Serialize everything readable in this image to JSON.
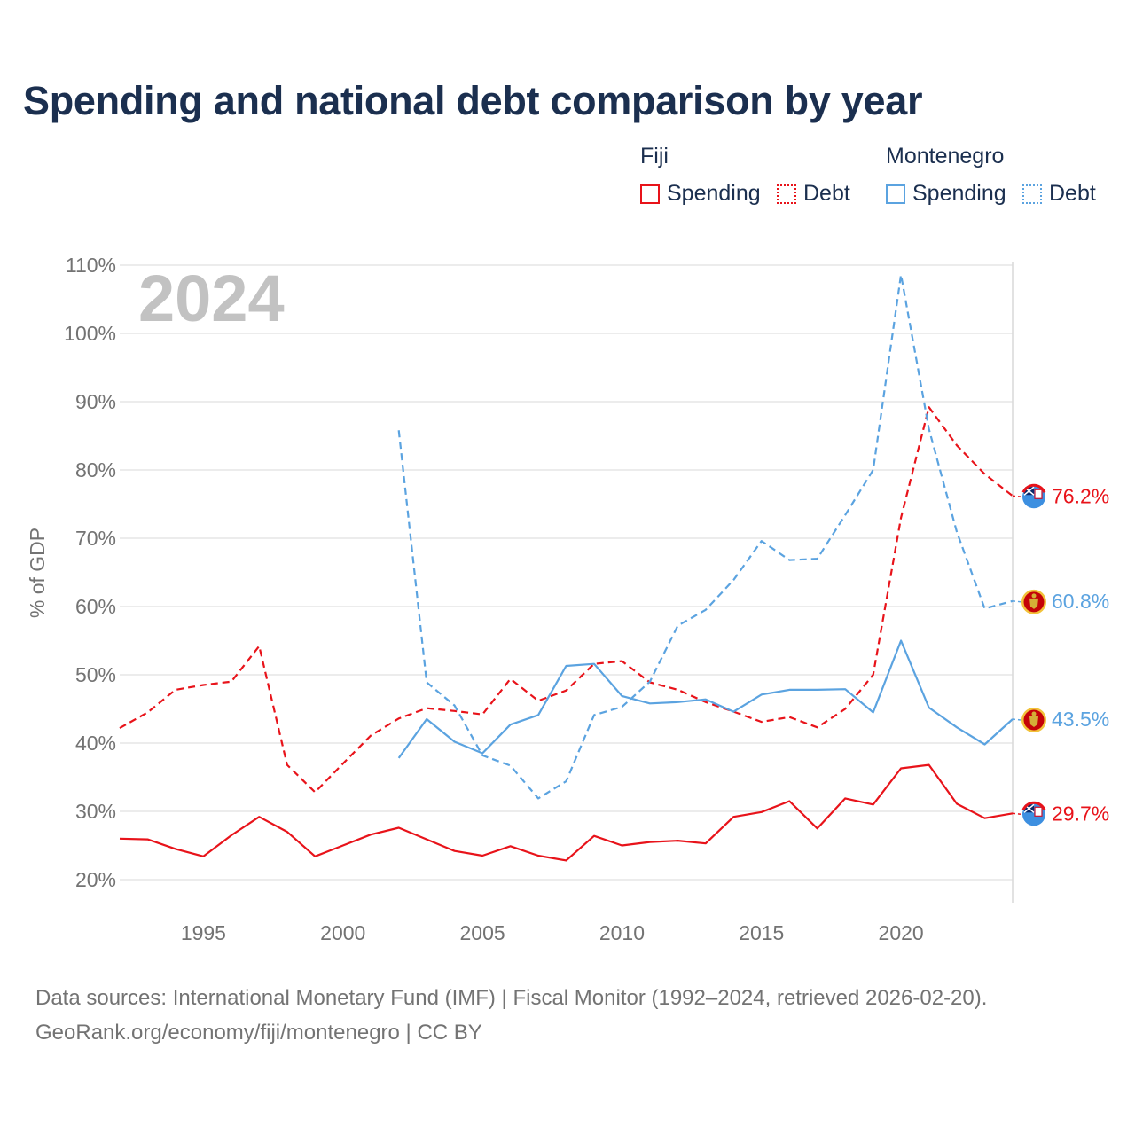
{
  "chart_data": {
    "type": "line",
    "title": "Spending and national debt comparison by year",
    "ylabel": "% of GDP",
    "xlabel": "",
    "watermark_year": "2024",
    "xlim": [
      1992,
      2024
    ],
    "ylim": [
      15,
      111
    ],
    "x_ticks": [
      1995,
      2000,
      2005,
      2010,
      2015,
      2020
    ],
    "y_ticks": [
      20,
      30,
      40,
      50,
      60,
      70,
      80,
      90,
      100,
      110
    ],
    "y_tick_labels": [
      "20%",
      "30%",
      "40%",
      "50%",
      "60%",
      "70%",
      "80%",
      "90%",
      "100%",
      "110%"
    ],
    "legend": {
      "groups": [
        {
          "name": "Fiji",
          "items": [
            "Spending",
            "Debt"
          ]
        },
        {
          "name": "Montenegro",
          "items": [
            "Spending",
            "Debt"
          ]
        }
      ]
    },
    "series": [
      {
        "id": "fiji-spending",
        "country": "Fiji",
        "name": "Spending",
        "style": "solid",
        "color": "#e8131a",
        "end_label": "29.7%",
        "x": [
          1992,
          1993,
          1994,
          1995,
          1996,
          1997,
          1998,
          1999,
          2000,
          2001,
          2002,
          2003,
          2004,
          2005,
          2006,
          2007,
          2008,
          2009,
          2010,
          2011,
          2012,
          2013,
          2014,
          2015,
          2016,
          2017,
          2018,
          2019,
          2020,
          2021,
          2022,
          2023,
          2024
        ],
        "values": [
          26.0,
          25.9,
          24.5,
          23.4,
          26.5,
          29.2,
          27.0,
          23.4,
          25.0,
          26.6,
          27.6,
          25.9,
          24.2,
          23.5,
          24.9,
          23.5,
          22.8,
          26.4,
          25.0,
          25.5,
          25.7,
          25.3,
          29.2,
          29.9,
          31.5,
          27.5,
          31.9,
          31.0,
          36.3,
          36.8,
          31.1,
          29.0,
          29.7
        ]
      },
      {
        "id": "fiji-debt",
        "country": "Fiji",
        "name": "Debt",
        "style": "dashed",
        "color": "#e8131a",
        "end_label": "76.2%",
        "x": [
          1992,
          1993,
          1994,
          1995,
          1996,
          1997,
          1998,
          1999,
          2000,
          2001,
          2002,
          2003,
          2004,
          2005,
          2006,
          2007,
          2008,
          2009,
          2010,
          2011,
          2012,
          2013,
          2014,
          2015,
          2016,
          2017,
          2018,
          2019,
          2020,
          2021,
          2022,
          2023,
          2024
        ],
        "values": [
          42.2,
          44.5,
          47.8,
          48.5,
          49.0,
          54.2,
          36.8,
          32.8,
          37.0,
          41.1,
          43.6,
          45.1,
          44.7,
          44.2,
          49.4,
          46.2,
          47.7,
          51.6,
          52.0,
          48.9,
          47.8,
          46.0,
          44.6,
          43.1,
          43.8,
          42.3,
          45.0,
          50.0,
          73.0,
          89.2,
          83.6,
          79.4,
          76.2
        ]
      },
      {
        "id": "montenegro-spending",
        "country": "Montenegro",
        "name": "Spending",
        "style": "solid",
        "color": "#5ba3e0",
        "end_label": "43.5%",
        "x": [
          2002,
          2003,
          2004,
          2005,
          2006,
          2007,
          2008,
          2009,
          2010,
          2011,
          2012,
          2013,
          2014,
          2015,
          2016,
          2017,
          2018,
          2019,
          2020,
          2021,
          2022,
          2023,
          2024
        ],
        "values": [
          37.8,
          43.5,
          40.2,
          38.5,
          42.7,
          44.1,
          51.3,
          51.6,
          46.9,
          45.8,
          46.0,
          46.4,
          44.6,
          47.1,
          47.8,
          47.8,
          47.9,
          44.5,
          55.0,
          45.2,
          42.3,
          39.8,
          43.5
        ]
      },
      {
        "id": "montenegro-debt",
        "country": "Montenegro",
        "name": "Debt",
        "style": "dashed",
        "color": "#5ba3e0",
        "end_label": "60.8%",
        "x": [
          2002,
          2003,
          2004,
          2005,
          2006,
          2007,
          2008,
          2009,
          2010,
          2011,
          2012,
          2013,
          2014,
          2015,
          2016,
          2017,
          2018,
          2019,
          2020,
          2021,
          2022,
          2023,
          2024
        ],
        "values": [
          85.8,
          48.9,
          45.5,
          38.2,
          36.7,
          31.9,
          34.4,
          44.1,
          45.3,
          49.0,
          57.2,
          59.5,
          63.9,
          69.6,
          66.8,
          67.0,
          73.4,
          80.0,
          108.6,
          86.0,
          70.9,
          59.7,
          60.8
        ]
      }
    ]
  },
  "flags": {
    "Fiji": {
      "name": "Fiji"
    },
    "Montenegro": {
      "name": "Montenegro"
    }
  },
  "source": {
    "line1": "Data sources: International Monetary Fund (IMF) | Fiscal Monitor (1992–2024, retrieved 2026-02-20).",
    "line2": "GeoRank.org/economy/fiji/montenegro | CC BY"
  }
}
